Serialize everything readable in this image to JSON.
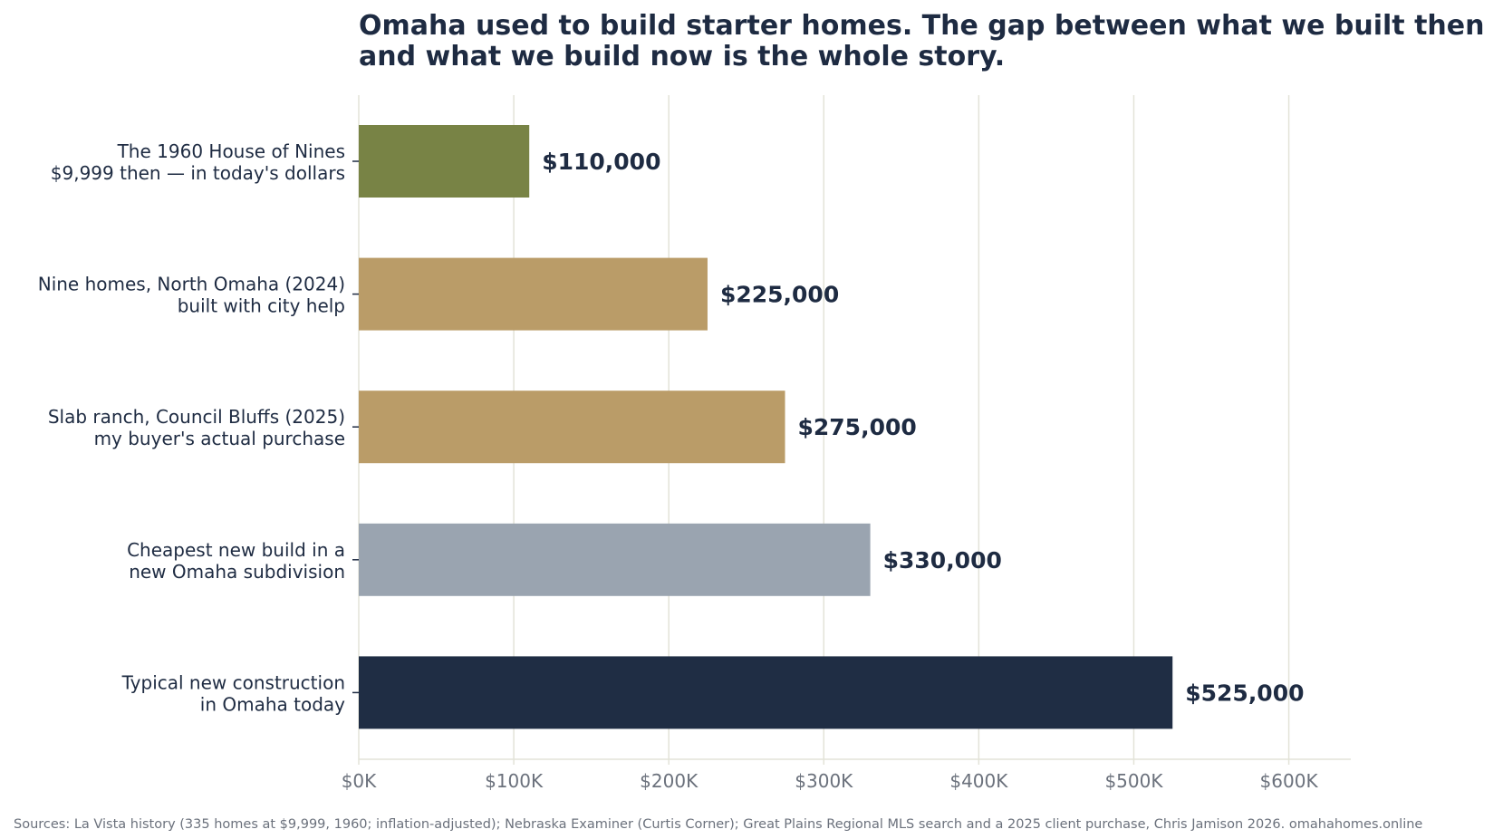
{
  "chart_data": {
    "type": "bar",
    "orientation": "horizontal",
    "title_lines": [
      "Omaha used to build starter homes. The gap between what we built then",
      "and what we build now is the whole story."
    ],
    "categories": [
      {
        "lines": [
          "The 1960 House of Nines",
          "$9,999 then — in today's dollars"
        ],
        "value": 110000,
        "value_label": "$110,000",
        "color": "#788345"
      },
      {
        "lines": [
          "Nine homes, North Omaha (2024)",
          "built with city help"
        ],
        "value": 225000,
        "value_label": "$225,000",
        "color": "#ba9c68"
      },
      {
        "lines": [
          "Slab ranch, Council Bluffs (2025)",
          "my buyer's actual purchase"
        ],
        "value": 275000,
        "value_label": "$275,000",
        "color": "#ba9c68"
      },
      {
        "lines": [
          "Cheapest new build in a",
          "new Omaha subdivision"
        ],
        "value": 330000,
        "value_label": "$330,000",
        "color": "#9aa4b0"
      },
      {
        "lines": [
          "Typical new construction",
          "in Omaha today"
        ],
        "value": 525000,
        "value_label": "$525,000",
        "color": "#1f2d44"
      }
    ],
    "x_ticks": [
      {
        "value": 0,
        "label": "$0K"
      },
      {
        "value": 100000,
        "label": "$100K"
      },
      {
        "value": 200000,
        "label": "$200K"
      },
      {
        "value": 300000,
        "label": "$300K"
      },
      {
        "value": 400000,
        "label": "$400K"
      },
      {
        "value": 500000,
        "label": "$500K"
      },
      {
        "value": 600000,
        "label": "$600K"
      }
    ],
    "xlim": [
      0,
      640000
    ],
    "grid": "vertical",
    "xlabel": "",
    "ylabel": "",
    "source": "Sources: La Vista history (335 homes at $9,999, 1960; inflation-adjusted); Nebraska Examiner (Curtis Corner); Great Plains Regional MLS search and a 2025 client purchase, Chris Jamison 2026.  omahahomes.online"
  }
}
